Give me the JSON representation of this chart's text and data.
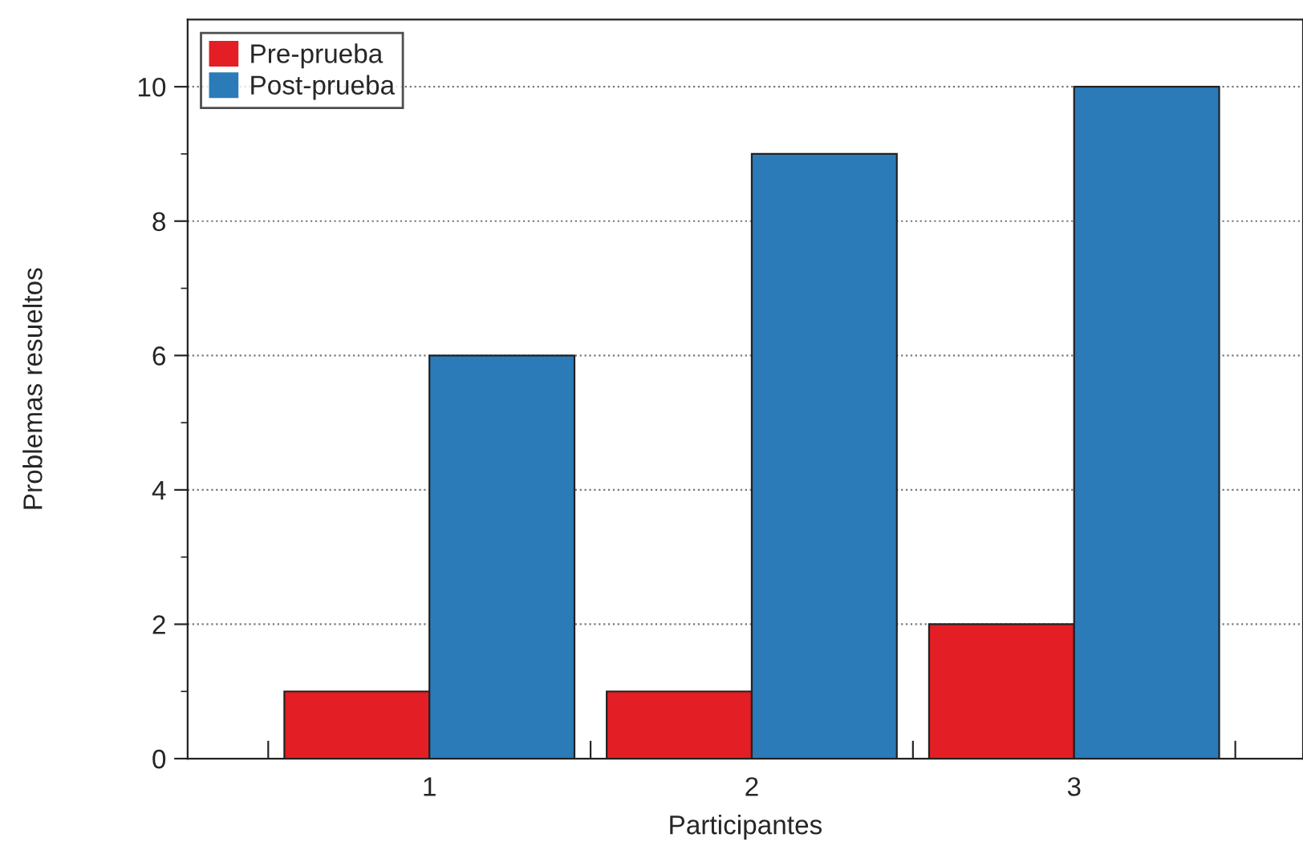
{
  "chart_data": {
    "type": "bar",
    "xlabel": "Participantes",
    "ylabel": "Problemas resueltos",
    "categories": [
      "1",
      "2",
      "3"
    ],
    "series": [
      {
        "name": "Pre-prueba",
        "color": "#e31e25",
        "values": [
          1,
          1,
          2
        ]
      },
      {
        "name": "Post-prueba",
        "color": "#2b7bb9",
        "values": [
          6,
          9,
          10
        ]
      }
    ],
    "ylim": [
      0,
      11
    ],
    "yticks": [
      0,
      {
        "value": 1,
        "label": null
      },
      2,
      {
        "value": 3,
        "label": null
      },
      4,
      {
        "value": 5,
        "label": null
      },
      6,
      {
        "value": 7,
        "label": null
      },
      8,
      {
        "value": 9,
        "label": null
      },
      10
    ],
    "grid": "y",
    "legend": "top left"
  }
}
